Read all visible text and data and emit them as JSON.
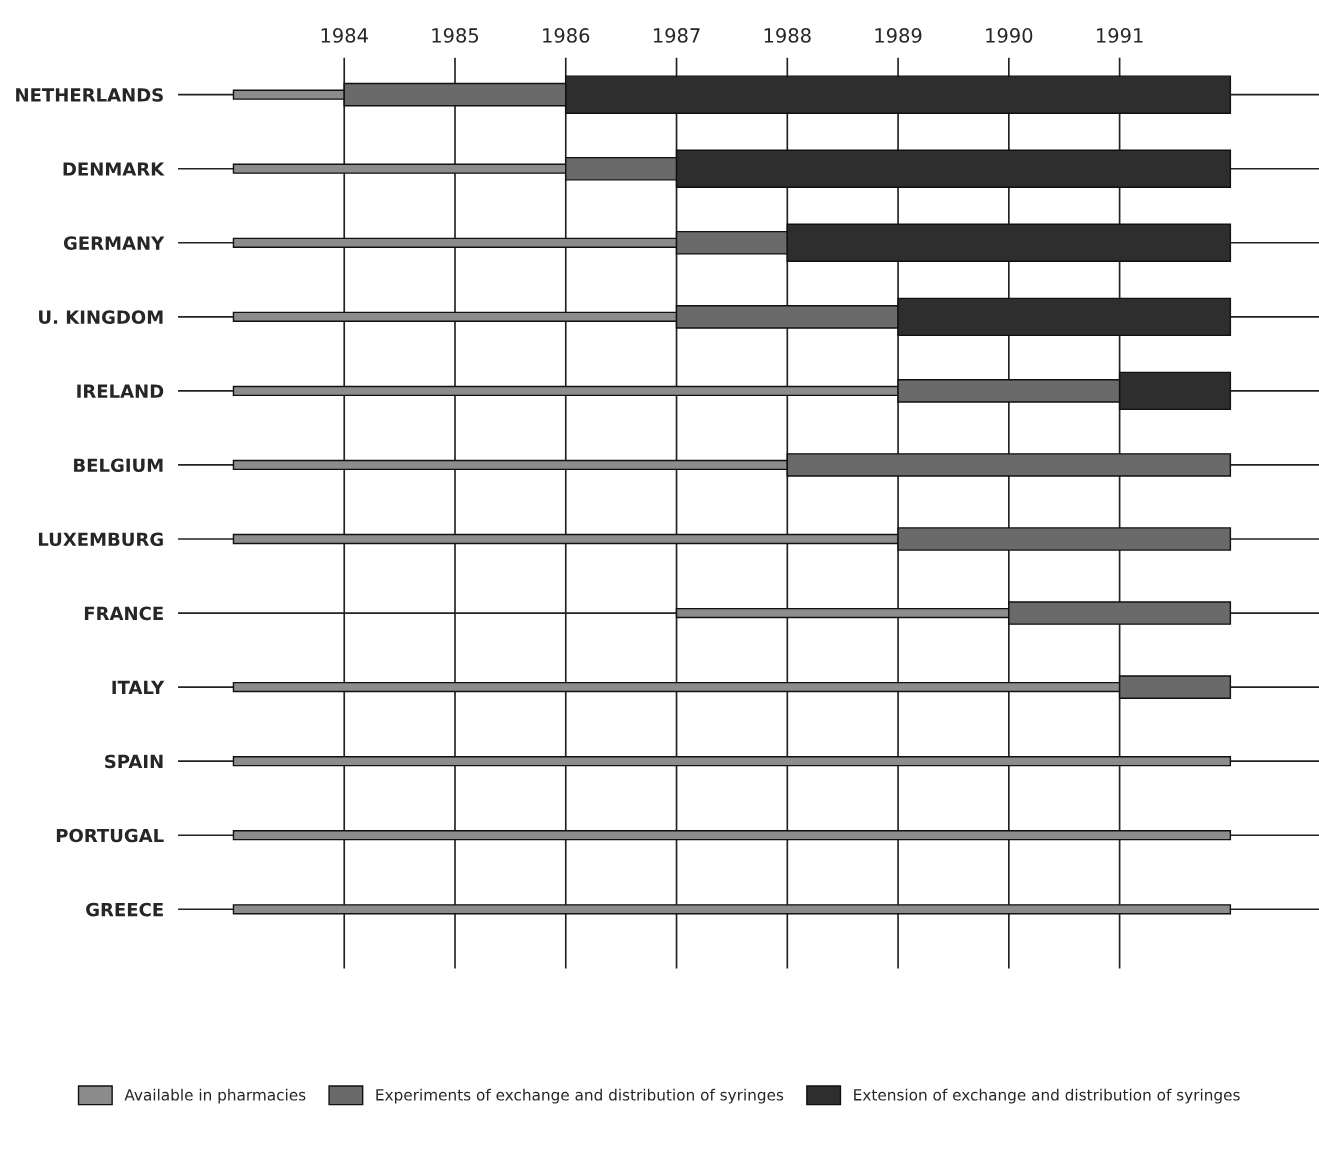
{
  "chart_data": {
    "type": "bar",
    "orientation": "horizontal",
    "categories": [
      "NETHERLANDS",
      "DENMARK",
      "GERMANY",
      "U. KINGDOM",
      "IRELAND",
      "BELGIUM",
      "LUXEMBURG",
      "FRANCE",
      "ITALY",
      "SPAIN",
      "PORTUGAL",
      "GREECE"
    ],
    "series": [
      {
        "name": "Available in pharmacies",
        "color": "#8c8c8c",
        "base": [
          1983,
          1983,
          1983,
          1983,
          1983,
          1983,
          1983,
          1987,
          1983,
          1983,
          1983,
          1983
        ],
        "values": [
          1,
          3,
          4,
          4,
          6,
          5,
          6,
          3,
          8,
          9,
          9,
          9
        ]
      },
      {
        "name": "Experiments of exchange and distribution of syringes",
        "color": "#6a6a6a",
        "base": [
          1984,
          1986,
          1987,
          1987,
          1989,
          1988,
          1989,
          1990,
          1991,
          null,
          null,
          null
        ],
        "values": [
          2,
          1,
          1,
          2,
          2,
          4,
          3,
          2,
          1,
          null,
          null,
          null
        ]
      },
      {
        "name": "Extension of exchange and distribution of syringes",
        "color": "#2e2e2e",
        "base": [
          1986,
          1987,
          1988,
          1989,
          1991,
          null,
          null,
          null,
          null,
          null,
          null,
          null
        ],
        "values": [
          6,
          5,
          4,
          3,
          1,
          null,
          null,
          null,
          null,
          null,
          null,
          null
        ]
      }
    ],
    "xlim": [
      1982.5,
      1992.8
    ],
    "xticks": [
      1984,
      1985,
      1986,
      1987,
      1988,
      1989,
      1990,
      1991
    ],
    "grid": true,
    "legend": "bottom"
  }
}
